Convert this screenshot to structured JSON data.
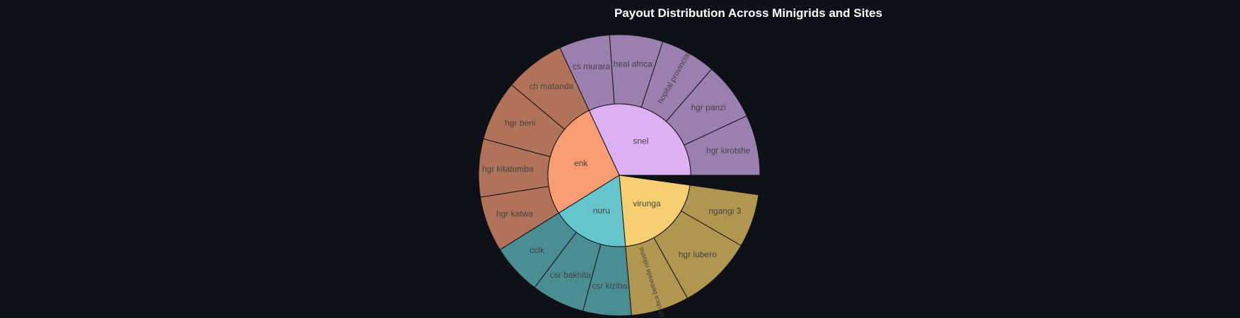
{
  "chart_data": {
    "type": "sunburst",
    "title": "Payout Distribution Across Minigrids and Sites",
    "groups": [
      {
        "name": "snel",
        "color": "#dcb0f2",
        "outer_color": "#9b7fb0",
        "children": [
          {
            "name": "hopital provincial",
            "value": 1
          },
          {
            "name": "heal africa",
            "value": 1
          },
          {
            "name": "cs murara",
            "value": 1
          },
          {
            "name": "hgr panzi",
            "value": 1
          },
          {
            "name": "hgr kirotshe",
            "value": 1
          }
        ]
      },
      {
        "name": "enk",
        "color": "#f89c74",
        "outer_color": "#b07258",
        "children": [
          {
            "name": "ch matanda",
            "value": 1
          },
          {
            "name": "hgr beni",
            "value": 1
          },
          {
            "name": "hgr kitatumba",
            "value": 1
          },
          {
            "name": "hgr katwa",
            "value": 1
          }
        ]
      },
      {
        "name": "nuru",
        "color": "#66c5cc",
        "outer_color": "#4a8d93",
        "children": [
          {
            "name": "cclk",
            "value": 1
          },
          {
            "name": "csr bakhita",
            "value": 1
          },
          {
            "name": "csr kiziba",
            "value": 1
          }
        ]
      },
      {
        "name": "virunga",
        "color": "#f6cf71",
        "outer_color": "#b0964f",
        "children": [
          {
            "name": "ch cbca bethesda ndosho",
            "value": 1
          },
          {
            "name": "hgr lubero",
            "value": 1
          },
          {
            "name": "ngangi 3",
            "value": 1
          }
        ]
      }
    ],
    "background": "#0e1117",
    "title_color": "#ffffff"
  }
}
